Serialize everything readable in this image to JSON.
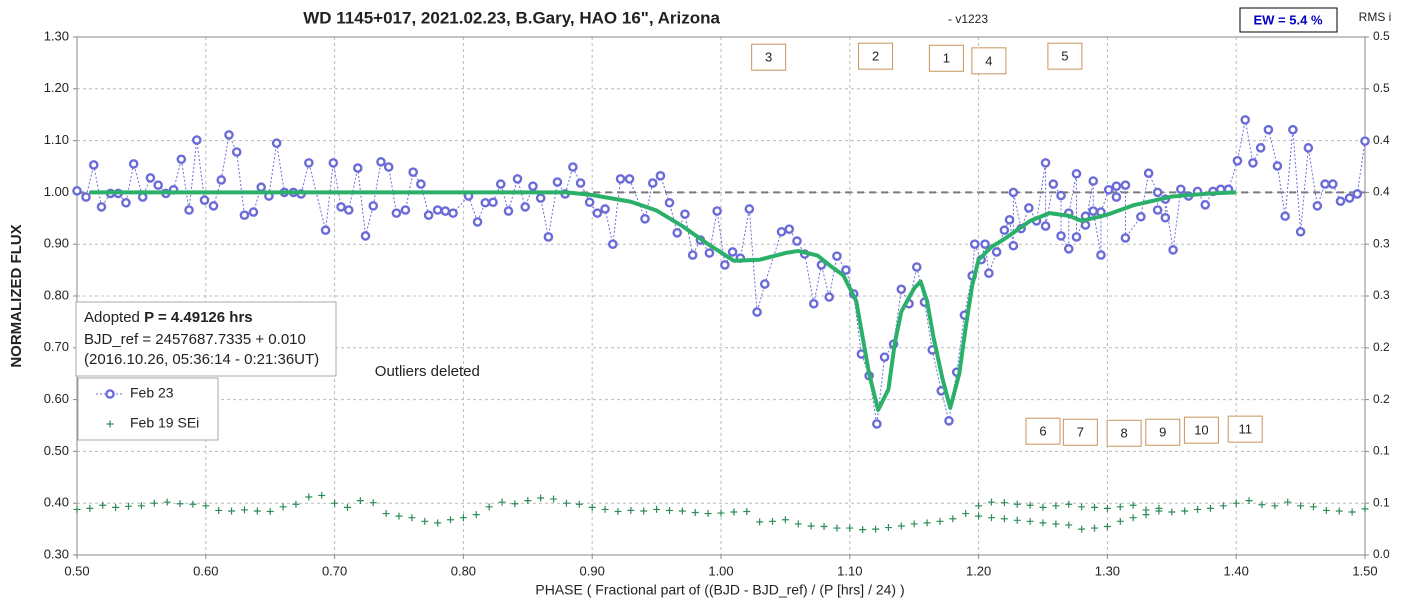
{
  "chart_data": {
    "type": "scatter",
    "title": "WD 1145+017, 2021.02.23, B.Gary, HAO 16\", Arizona",
    "subtitle": "- v1223",
    "ew_label": "EW = 5.4 %",
    "x_label": "PHASE ( Fractional part of ((BJD - BJD_ref) / (P [hrs] / 24) )",
    "y_label": "NORMALIZED FLUX",
    "y2_label": "RMS i",
    "info": {
      "prefix": "Adopted",
      "bold": "P = 4.49126 hrs",
      "lines": [
        "BJD_ref = 2457687.7335 + 0.010",
        "(2016.10.26, 05:36:14 - 0:21:36UT)"
      ]
    },
    "note": {
      "text": "Outliers deleted",
      "x": 0.772,
      "y": 0.653
    },
    "grid": true,
    "reference_line": 1,
    "xlim": [
      0.5,
      1.5
    ],
    "xticks": [
      {
        "value": 0.5,
        "label": "0.50"
      },
      {
        "value": 0.6,
        "label": "0.60"
      },
      {
        "value": 0.7,
        "label": "0.70"
      },
      {
        "value": 0.8,
        "label": "0.80"
      },
      {
        "value": 0.9,
        "label": "0.90"
      },
      {
        "value": 1.0,
        "label": "1.00"
      },
      {
        "value": 1.1,
        "label": "1.10"
      },
      {
        "value": 1.2,
        "label": "1.20"
      },
      {
        "value": 1.3,
        "label": "1.30"
      },
      {
        "value": 1.4,
        "label": "1.40"
      },
      {
        "value": 1.5,
        "label": "1.50"
      }
    ],
    "ylim": [
      0.3,
      1.3
    ],
    "yticks": [
      {
        "value": 0.3,
        "label": "0.30"
      },
      {
        "value": 0.4,
        "label": "0.40"
      },
      {
        "value": 0.5,
        "label": "0.50"
      },
      {
        "value": 0.6,
        "label": "0.60"
      },
      {
        "value": 0.7,
        "label": "0.70"
      },
      {
        "value": 0.8,
        "label": "0.80"
      },
      {
        "value": 0.9,
        "label": "0.90"
      },
      {
        "value": 1.0,
        "label": "1.00"
      },
      {
        "value": 1.1,
        "label": "1.10"
      },
      {
        "value": 1.2,
        "label": "1.20"
      },
      {
        "value": 1.3,
        "label": "1.30"
      }
    ],
    "y2lim": [
      0,
      0.5
    ],
    "y2ticks": [
      {
        "value": 0,
        "label": "0.0"
      },
      {
        "value": 0.05,
        "label": "0.1"
      },
      0.1,
      {
        "value": 0.15,
        "label": "0.2"
      },
      0.2,
      {
        "value": 0.25,
        "label": "0.3"
      },
      0.3,
      {
        "value": 0.35,
        "label": "0.4"
      },
      0.4,
      {
        "value": 0.45,
        "label": "0.5"
      },
      0.5
    ],
    "annotations": [
      {
        "text": "3",
        "x": 1.037,
        "y": 1.261
      },
      {
        "text": "2",
        "x": 1.12,
        "y": 1.263
      },
      {
        "text": "1",
        "x": 1.175,
        "y": 1.259
      },
      {
        "text": "4",
        "x": 1.208,
        "y": 1.254
      },
      {
        "text": "5",
        "x": 1.267,
        "y": 1.263
      },
      {
        "text": "6",
        "x": 1.25,
        "y": 0.539
      },
      {
        "text": "7",
        "x": 1.279,
        "y": 0.537
      },
      {
        "text": "8",
        "x": 1.313,
        "y": 0.535
      },
      {
        "text": "9",
        "x": 1.343,
        "y": 0.537
      },
      {
        "text": "10",
        "x": 1.373,
        "y": 0.541
      },
      {
        "text": "11",
        "x": 1.407,
        "y": 0.543
      }
    ],
    "series": [
      {
        "name": "Feb 23",
        "color": "#6b6bd8",
        "marker": "circle",
        "x": [
          0.5,
          0.507,
          0.513,
          0.519,
          0.526,
          0.532,
          0.538,
          0.544,
          0.551,
          0.557,
          0.563,
          0.569,
          0.575,
          0.581,
          0.587,
          0.593,
          0.599,
          0.606,
          0.612,
          0.618,
          0.624,
          0.63,
          0.637,
          0.643,
          0.649,
          0.655,
          0.661,
          0.668,
          0.674,
          0.68,
          0.693,
          0.699,
          0.705,
          0.711,
          0.718,
          0.724,
          0.73,
          0.736,
          0.742,
          0.748,
          0.755,
          0.761,
          0.767,
          0.773,
          0.78,
          0.786,
          0.792,
          0.804,
          0.811,
          0.817,
          0.823,
          0.829,
          0.835,
          0.842,
          0.848,
          0.854,
          0.86,
          0.866,
          0.873,
          0.879,
          0.885,
          0.891,
          0.898,
          0.904,
          0.91,
          0.916,
          0.922,
          0.929,
          0.941,
          0.947,
          0.953,
          0.96,
          0.966,
          0.972,
          0.978,
          0.984,
          0.991,
          0.997,
          1.003,
          1.009,
          1.015,
          1.022,
          1.028,
          1.034,
          1.047,
          1.053,
          1.059,
          1.065,
          1.072,
          1.078,
          1.084,
          1.09,
          1.097,
          1.103,
          1.109,
          1.115,
          1.121,
          1.127,
          1.134,
          1.14,
          1.146,
          1.152,
          1.158,
          1.164,
          1.171,
          1.177,
          1.183,
          1.189,
          1.195,
          1.197,
          1.202,
          1.205,
          1.208,
          1.214,
          1.22,
          1.224,
          1.227,
          1.227,
          1.233,
          1.239,
          1.245,
          1.252,
          1.252,
          1.258,
          1.264,
          1.264,
          1.27,
          1.27,
          1.276,
          1.276,
          1.283,
          1.283,
          1.289,
          1.289,
          1.295,
          1.295,
          1.301,
          1.307,
          1.307,
          1.314,
          1.314,
          1.326,
          1.332,
          1.339,
          1.339,
          1.345,
          1.345,
          1.351,
          1.357,
          1.363,
          1.37,
          1.376,
          1.382,
          1.388,
          1.394,
          1.401,
          1.407,
          1.413,
          1.419,
          1.425,
          1.432,
          1.438,
          1.444,
          1.45,
          1.456,
          1.463,
          1.469,
          1.475,
          1.481,
          1.488,
          1.494,
          1.5
        ],
        "values": [
          1.003,
          0.991,
          1.053,
          0.972,
          0.998,
          0.998,
          0.98,
          1.055,
          0.991,
          1.028,
          1.014,
          0.998,
          1.005,
          1.064,
          0.966,
          1.101,
          0.985,
          0.974,
          1.024,
          1.111,
          1.078,
          0.956,
          0.962,
          1.01,
          0.993,
          1.095,
          1.0,
          1.0,
          0.997,
          1.057,
          0.927,
          1.057,
          0.972,
          0.966,
          1.047,
          0.916,
          0.974,
          1.059,
          1.049,
          0.96,
          0.966,
          1.039,
          1.016,
          0.956,
          0.966,
          0.964,
          0.96,
          0.993,
          0.943,
          0.98,
          0.981,
          1.016,
          0.964,
          1.026,
          0.972,
          1.012,
          0.989,
          0.914,
          1.02,
          0.997,
          1.049,
          1.018,
          0.981,
          0.96,
          0.968,
          0.9,
          1.026,
          1.026,
          0.949,
          1.018,
          1.032,
          0.98,
          0.922,
          0.958,
          0.879,
          0.908,
          0.883,
          0.964,
          0.86,
          0.885,
          0.873,
          0.968,
          0.769,
          0.823,
          0.924,
          0.929,
          0.906,
          0.881,
          0.785,
          0.86,
          0.798,
          0.877,
          0.85,
          0.804,
          0.688,
          0.646,
          0.553,
          0.682,
          0.707,
          0.813,
          0.785,
          0.856,
          0.788,
          0.696,
          0.617,
          0.559,
          0.653,
          0.763,
          0.839,
          0.9,
          0.87,
          0.9,
          0.844,
          0.885,
          0.927,
          0.947,
          0.897,
          1.0,
          0.93,
          0.97,
          0.945,
          1.057,
          0.935,
          1.016,
          0.994,
          0.916,
          0.891,
          0.96,
          1.036,
          0.914,
          0.954,
          0.937,
          1.022,
          0.964,
          0.879,
          0.962,
          1.005,
          1.012,
          0.991,
          1.014,
          0.912,
          0.953,
          1.037,
          1.0,
          0.966,
          0.951,
          0.987,
          0.889,
          1.006,
          0.993,
          1.002,
          0.976,
          1.002,
          1.006,
          1.006,
          1.061,
          1.14,
          1.057,
          1.086,
          1.121,
          1.051,
          0.954,
          1.121,
          0.924,
          1.086,
          0.974,
          1.016,
          1.016,
          0.983,
          0.989,
          0.997,
          1.099
        ]
      },
      {
        "name": "Feb 19 SEi",
        "color": "#2e8b57",
        "marker": "plus",
        "x": [
          0.5,
          0.51,
          0.52,
          0.53,
          0.54,
          0.55,
          0.56,
          0.57,
          0.58,
          0.59,
          0.6,
          0.61,
          0.62,
          0.63,
          0.64,
          0.65,
          0.66,
          0.67,
          0.68,
          0.69,
          0.7,
          0.71,
          0.72,
          0.73,
          0.74,
          0.75,
          0.76,
          0.77,
          0.78,
          0.79,
          0.8,
          0.81,
          0.82,
          0.83,
          0.84,
          0.85,
          0.86,
          0.87,
          0.88,
          0.89,
          0.9,
          0.91,
          0.92,
          0.93,
          0.94,
          0.95,
          0.96,
          0.97,
          0.98,
          0.99,
          1.0,
          1.01,
          1.02,
          1.03,
          1.04,
          1.05,
          1.06,
          1.07,
          1.08,
          1.09,
          1.1,
          1.11,
          1.12,
          1.13,
          1.14,
          1.15,
          1.16,
          1.17,
          1.18,
          1.19,
          1.2,
          1.21,
          1.22,
          1.23,
          1.24,
          1.25,
          1.26,
          1.27,
          1.28,
          1.29,
          1.3,
          1.31,
          1.32,
          1.33,
          1.34,
          1.35,
          1.36,
          1.37,
          1.38,
          1.39,
          1.4,
          1.41,
          1.42,
          1.43,
          1.44,
          1.45,
          1.46,
          1.47,
          1.48,
          1.49,
          1.5,
          1.2,
          1.21,
          1.22,
          1.23,
          1.24,
          1.25,
          1.26,
          1.27,
          1.28,
          1.29,
          1.3,
          1.31,
          1.32,
          1.33,
          1.34
        ],
        "values": [
          0.388,
          0.39,
          0.396,
          0.392,
          0.394,
          0.395,
          0.4,
          0.402,
          0.399,
          0.398,
          0.395,
          0.386,
          0.385,
          0.387,
          0.385,
          0.384,
          0.393,
          0.398,
          0.412,
          0.415,
          0.4,
          0.392,
          0.405,
          0.401,
          0.38,
          0.375,
          0.372,
          0.365,
          0.362,
          0.368,
          0.372,
          0.378,
          0.393,
          0.402,
          0.399,
          0.405,
          0.41,
          0.408,
          0.4,
          0.398,
          0.392,
          0.388,
          0.384,
          0.386,
          0.385,
          0.388,
          0.386,
          0.385,
          0.382,
          0.38,
          0.381,
          0.383,
          0.384,
          0.364,
          0.365,
          0.368,
          0.36,
          0.356,
          0.355,
          0.352,
          0.352,
          0.349,
          0.35,
          0.353,
          0.356,
          0.36,
          0.362,
          0.365,
          0.37,
          0.38,
          0.395,
          0.402,
          0.401,
          0.398,
          0.396,
          0.392,
          0.395,
          0.398,
          0.393,
          0.392,
          0.39,
          0.393,
          0.396,
          0.387,
          0.39,
          0.383,
          0.385,
          0.388,
          0.39,
          0.395,
          0.4,
          0.405,
          0.397,
          0.395,
          0.402,
          0.395,
          0.393,
          0.386,
          0.385,
          0.383,
          0.389,
          0.375,
          0.372,
          0.37,
          0.367,
          0.365,
          0.362,
          0.36,
          0.358,
          0.35,
          0.352,
          0.355,
          0.365,
          0.372,
          0.378,
          0.385
        ]
      },
      {
        "color": "#2bb06a",
        "marker": "line",
        "x": [
          0.51,
          0.6,
          0.7,
          0.8,
          0.88,
          0.9,
          0.93,
          0.95,
          0.97,
          0.99,
          1.01,
          1.03,
          1.05,
          1.06,
          1.075,
          1.085,
          1.095,
          1.105,
          1.11,
          1.115,
          1.122,
          1.13,
          1.135,
          1.14,
          1.15,
          1.155,
          1.16,
          1.165,
          1.172,
          1.178,
          1.185,
          1.19,
          1.195,
          1.2,
          1.21,
          1.22,
          1.24,
          1.255,
          1.27,
          1.28,
          1.3,
          1.32,
          1.35,
          1.38,
          1.4
        ],
        "values": [
          1.0,
          1.0,
          1.0,
          1.0,
          1.0,
          0.995,
          0.982,
          0.965,
          0.935,
          0.9,
          0.868,
          0.87,
          0.883,
          0.887,
          0.878,
          0.858,
          0.84,
          0.79,
          0.72,
          0.65,
          0.58,
          0.62,
          0.71,
          0.77,
          0.815,
          0.828,
          0.79,
          0.72,
          0.64,
          0.584,
          0.65,
          0.74,
          0.82,
          0.87,
          0.895,
          0.91,
          0.945,
          0.96,
          0.955,
          0.945,
          0.957,
          0.975,
          0.992,
          0.998,
          1.0
        ]
      }
    ]
  }
}
